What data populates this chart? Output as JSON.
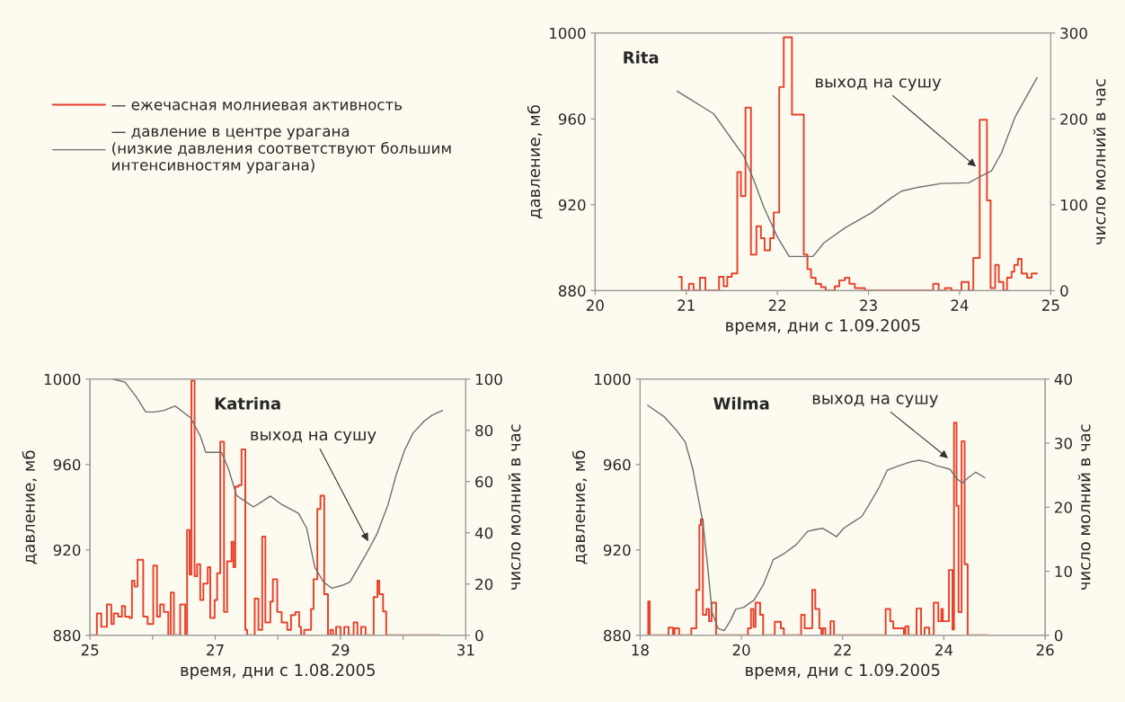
{
  "chart_data": [
    {
      "type": "line",
      "title": "Rita",
      "xlabel": "время, дни с 1.09.2005",
      "ylabel": "давление, мб",
      "y2label": "число молний в час",
      "xlim": [
        20,
        25
      ],
      "xticks": [
        20,
        21,
        22,
        23,
        24,
        25
      ],
      "ylim": [
        880,
        1000
      ],
      "yticks": [
        880,
        920,
        960,
        1000
      ],
      "y2lim": [
        0,
        300
      ],
      "y2ticks": [
        0,
        100,
        200,
        300
      ],
      "legend": "left",
      "series": [
        {
          "name": "— ежечасная молниевая активность",
          "type": "step",
          "axis": "y2",
          "color": "#e8412c",
          "x": [
            20.92,
            20.95,
            21.03,
            21.08,
            21.15,
            21.21,
            21.36,
            21.41,
            21.45,
            21.5,
            21.56,
            21.6,
            21.65,
            21.71,
            21.77,
            21.82,
            21.86,
            21.92,
            21.96,
            22.02,
            22.07,
            22.16,
            22.29,
            22.33,
            22.37,
            22.42,
            22.48,
            22.53,
            22.63,
            22.68,
            22.74,
            22.79,
            22.85,
            22.96,
            23.71,
            23.77,
            23.84,
            23.91,
            24.02,
            24.1,
            24.15,
            24.22,
            24.3,
            24.34,
            24.39,
            24.43,
            24.48,
            24.52,
            24.57,
            24.6,
            24.64,
            24.68,
            24.74,
            24.79,
            24.85
          ],
          "values": [
            16,
            0,
            8,
            0,
            15,
            0,
            16,
            5,
            16,
            20,
            138,
            110,
            213,
            42,
            75,
            61,
            47,
            61,
            91,
            237,
            295,
            205,
            42,
            25,
            15,
            8,
            4,
            0,
            5,
            12,
            15,
            8,
            3,
            0,
            8,
            0,
            3,
            0,
            10,
            0,
            38,
            199,
            105,
            3,
            30,
            10,
            0,
            15,
            22,
            30,
            37,
            20,
            15,
            20,
            20
          ]
        },
        {
          "name": "— давление в центре урагана\n(низкие давления соответствуют большим\nинтенсивностям урагана)",
          "axis": "y",
          "color": "#6e6e6e",
          "x": [
            20.9,
            21.3,
            21.63,
            21.74,
            21.85,
            22.0,
            22.13,
            22.39,
            22.51,
            22.74,
            23.03,
            23.25,
            23.36,
            23.54,
            23.8,
            24.1,
            24.22,
            24.35,
            24.46,
            24.61,
            24.85
          ],
          "values": [
            972.9,
            962.4,
            942.8,
            931.6,
            919.0,
            905.0,
            895.9,
            895.9,
            902.2,
            909.2,
            916.2,
            923.2,
            926.3,
            928.1,
            929.9,
            930.2,
            933.0,
            935.8,
            944.2,
            961.0,
            979.2
          ]
        }
      ],
      "annotations": [
        {
          "text": "выход на сушу",
          "x": 24.2,
          "y": 937
        }
      ]
    },
    {
      "type": "line",
      "title": "Katrina",
      "xlabel": "время, дни с 1.08.2005",
      "ylabel": "давление, мб",
      "y2label": "число молний в час",
      "xlim": [
        25,
        31
      ],
      "xticks": [
        25,
        {
          "value": 26,
          "label": null
        },
        27,
        {
          "value": 28,
          "label": null
        },
        29,
        {
          "value": 30,
          "label": null
        },
        31
      ],
      "ylim": [
        880,
        1000
      ],
      "yticks": [
        880,
        920,
        960,
        1000
      ],
      "y2lim": [
        0,
        100
      ],
      "y2ticks": [
        0,
        20,
        40,
        60,
        80,
        100
      ],
      "series": [
        {
          "type": "step",
          "axis": "y2",
          "color": "#e8412c",
          "x": [
            25.0,
            25.11,
            25.18,
            25.27,
            25.34,
            25.38,
            25.45,
            25.51,
            25.56,
            25.63,
            25.67,
            25.71,
            25.76,
            25.85,
            25.92,
            26.01,
            26.07,
            26.12,
            26.18,
            26.25,
            26.29,
            26.34,
            26.44,
            26.52,
            26.55,
            26.59,
            26.62,
            26.67,
            26.71,
            26.76,
            26.81,
            26.88,
            26.92,
            26.99,
            27.03,
            27.08,
            27.14,
            27.19,
            27.26,
            27.29,
            27.32,
            27.37,
            27.42,
            27.48,
            27.51,
            27.63,
            27.69,
            27.75,
            27.8,
            27.88,
            27.92,
            27.99,
            28.06,
            28.15,
            28.21,
            28.28,
            28.34,
            28.37,
            28.42,
            28.53,
            28.57,
            28.63,
            28.68,
            28.74,
            28.8,
            28.84,
            28.88,
            28.93,
            29.0,
            29.06,
            29.13,
            29.21,
            29.27,
            29.33,
            29.4,
            29.53,
            29.59,
            29.62,
            29.68,
            29.73,
            30.58
          ],
          "values": [
            0,
            8.5,
            3.3,
            12.0,
            4.4,
            8.5,
            7.3,
            11.4,
            7.3,
            6.8,
            21.3,
            19.0,
            29.5,
            7.3,
            4.4,
            27.2,
            7.3,
            12.0,
            9.1,
            0,
            16.7,
            0,
            12.0,
            0,
            41.1,
            23.7,
            99.4,
            23.1,
            27.7,
            13.8,
            20.2,
            26.6,
            6.8,
            13.8,
            24.2,
            75.5,
            9.1,
            28.9,
            36.5,
            26.6,
            58.0,
            58.6,
            72.6,
            2.1,
            0,
            14.3,
            2.1,
            38.5,
            5.0,
            13.2,
            21.9,
            9.1,
            5.0,
            2.1,
            7.9,
            9.1,
            3.3,
            0,
            2.1,
            10.3,
            21.9,
            49.3,
            54.5,
            16.1,
            0,
            2.1,
            0,
            3.3,
            0,
            3.3,
            0,
            5.0,
            0,
            3.3,
            0,
            14.9,
            21.3,
            16.1,
            9.3,
            0,
            0
          ]
        },
        {
          "axis": "y",
          "color": "#6e6e6e",
          "x": [
            25.36,
            25.56,
            25.74,
            25.89,
            26.03,
            26.18,
            26.36,
            26.61,
            26.76,
            26.85,
            27.1,
            27.21,
            27.34,
            27.48,
            27.61,
            27.75,
            27.88,
            28.06,
            28.33,
            28.46,
            28.59,
            28.73,
            28.86,
            29.04,
            29.15,
            29.26,
            29.4,
            29.58,
            29.76,
            29.89,
            30.02,
            30.16,
            30.34,
            30.47,
            30.63
          ],
          "values": [
            1000,
            998.6,
            991.6,
            984.6,
            984.6,
            985.3,
            987.4,
            981.8,
            973.4,
            965.7,
            965.7,
            958.0,
            945.5,
            942.7,
            940.1,
            942.7,
            945.2,
            941.3,
            937.1,
            930.1,
            911.9,
            904.9,
            902.1,
            903.5,
            904.9,
            910.5,
            917.5,
            927.3,
            941.3,
            955.2,
            966.4,
            974.8,
            980.4,
            983.2,
            985.3
          ]
        }
      ],
      "annotations": [
        {
          "text": "выход на сушу",
          "x": 29.46,
          "y": 923
        }
      ]
    },
    {
      "type": "line",
      "title": "Wilma",
      "xlabel": "время, дни с 1.09.2005",
      "ylabel": "давление, мб",
      "y2label": "число молний в час",
      "xlim": [
        18,
        26
      ],
      "xticks": [
        18,
        20,
        22,
        24,
        26
      ],
      "ylim": [
        880,
        1000
      ],
      "yticks": [
        880,
        920,
        960,
        1000
      ],
      "y2lim": [
        0,
        40
      ],
      "y2ticks": [
        0,
        10,
        20,
        30,
        40
      ],
      "series": [
        {
          "type": "step",
          "axis": "y2",
          "color": "#e8412c",
          "x": [
            18.15,
            18.16,
            18.19,
            18.56,
            18.65,
            18.68,
            18.77,
            19.01,
            19.11,
            19.17,
            19.2,
            19.24,
            19.31,
            19.36,
            19.41,
            19.5,
            20.13,
            20.19,
            20.24,
            20.28,
            20.37,
            20.43,
            20.66,
            20.78,
            20.84,
            21.18,
            21.25,
            21.4,
            21.46,
            21.54,
            21.58,
            21.61,
            21.66,
            21.76,
            21.83,
            22.85,
            22.94,
            23.0,
            23.21,
            23.24,
            23.3,
            23.46,
            23.55,
            23.62,
            23.71,
            23.8,
            23.89,
            23.95,
            23.98,
            24.1,
            24.17,
            24.2,
            24.25,
            24.29,
            24.35,
            24.41,
            24.47,
            24.86
          ],
          "values": [
            0,
            5.3,
            0,
            1.2,
            0,
            1.1,
            0,
            1.1,
            7.1,
            17.2,
            18.1,
            3.2,
            4.1,
            2.2,
            5.1,
            0,
            1.1,
            4.1,
            1.3,
            5.1,
            3.2,
            0,
            2.1,
            1.1,
            0,
            3.2,
            1.1,
            7.1,
            4.1,
            1.1,
            0,
            1.1,
            0,
            2.2,
            0,
            4.1,
            2.2,
            1.1,
            0,
            1.4,
            0,
            4.2,
            0,
            1.2,
            0,
            5.1,
            2.2,
            4.1,
            2.2,
            10.2,
            0.9,
            33.2,
            20.2,
            3.6,
            30.3,
            11.1,
            0,
            0
          ]
        },
        {
          "axis": "y",
          "color": "#6e6e6e",
          "x": [
            18.15,
            18.47,
            18.71,
            18.89,
            19.04,
            19.15,
            19.24,
            19.33,
            19.42,
            19.54,
            19.66,
            19.78,
            19.89,
            20.04,
            20.25,
            20.43,
            20.63,
            20.84,
            21.08,
            21.31,
            21.43,
            21.61,
            21.73,
            21.88,
            22.02,
            22.2,
            22.38,
            22.56,
            22.73,
            22.88,
            23.09,
            23.33,
            23.5,
            23.68,
            23.86,
            24.12,
            24.24,
            24.36,
            24.48,
            24.63,
            24.81
          ],
          "values": [
            987.7,
            982.5,
            976.2,
            970.6,
            958.0,
            944.1,
            932.9,
            913.3,
            890.9,
            883.2,
            882.2,
            886.7,
            892.3,
            893.0,
            896.5,
            903.5,
            915.4,
            918.2,
            922.4,
            928.7,
            929.4,
            930.1,
            928.4,
            926.2,
            930.1,
            932.9,
            935.7,
            942.7,
            949.7,
            957.3,
            959.2,
            961.1,
            962.0,
            961.1,
            959.4,
            957.8,
            953.8,
            951.3,
            953.8,
            956.4,
            953.8
          ]
        }
      ],
      "annotations": [
        {
          "text": "выход на сушу",
          "x": 24.12,
          "y": 962.2
        }
      ]
    }
  ]
}
